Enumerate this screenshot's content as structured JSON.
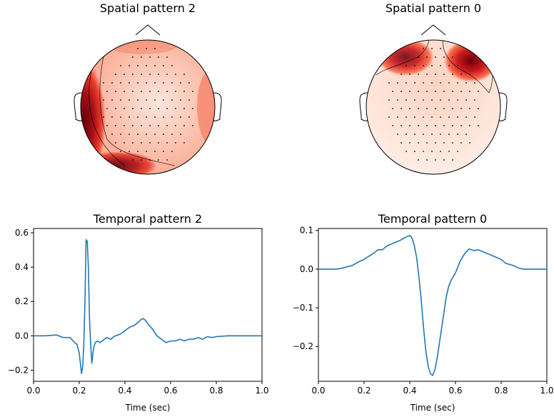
{
  "chart_data": [
    {
      "type": "topomap",
      "title": "Spatial pattern 2",
      "colormap": "Reds",
      "hotspots": [
        {
          "region": "left-temporal",
          "intensity": 1.0
        },
        {
          "region": "left-occipital",
          "intensity": 0.95
        },
        {
          "region": "right-temporal",
          "intensity": 0.35
        },
        {
          "region": "frontal",
          "intensity": 0.25
        }
      ]
    },
    {
      "type": "topomap",
      "title": "Spatial pattern 0",
      "colormap": "Reds",
      "hotspots": [
        {
          "region": "right-frontal",
          "intensity": 1.0
        },
        {
          "region": "left-frontal",
          "intensity": 0.9
        },
        {
          "region": "occipital",
          "intensity": 0.08
        }
      ]
    },
    {
      "type": "line",
      "title": "Temporal pattern 2",
      "xlabel": "Time (sec)",
      "ylabel": "",
      "xlim": [
        0.0,
        1.0
      ],
      "ylim": [
        -0.265,
        0.625
      ],
      "xticks": [
        "0.0",
        "0.2",
        "0.4",
        "0.6",
        "0.8",
        "1.0"
      ],
      "yticks": [
        "−0.2",
        "0.0",
        "0.2",
        "0.4",
        "0.6"
      ],
      "series": [
        {
          "color": "#1f77b4",
          "x": [
            0.0,
            0.05,
            0.1,
            0.13,
            0.16,
            0.18,
            0.19,
            0.2,
            0.21,
            0.215,
            0.22,
            0.225,
            0.23,
            0.235,
            0.24,
            0.245,
            0.25,
            0.255,
            0.26,
            0.265,
            0.27,
            0.28,
            0.29,
            0.3,
            0.32,
            0.34,
            0.35,
            0.36,
            0.38,
            0.4,
            0.42,
            0.44,
            0.46,
            0.47,
            0.48,
            0.49,
            0.5,
            0.52,
            0.54,
            0.56,
            0.58,
            0.6,
            0.62,
            0.64,
            0.66,
            0.68,
            0.7,
            0.72,
            0.74,
            0.76,
            0.78,
            0.8,
            0.85,
            0.9,
            0.95,
            1.0
          ],
          "values": [
            0.0,
            0.0,
            0.005,
            -0.01,
            -0.01,
            -0.04,
            -0.05,
            -0.1,
            -0.22,
            -0.18,
            -0.05,
            0.2,
            0.56,
            0.55,
            0.4,
            0.1,
            -0.05,
            -0.16,
            -0.1,
            -0.06,
            -0.04,
            -0.03,
            -0.04,
            -0.03,
            -0.01,
            -0.02,
            -0.005,
            0.0,
            0.01,
            0.03,
            0.05,
            0.06,
            0.08,
            0.095,
            0.1,
            0.09,
            0.07,
            0.04,
            0.0,
            -0.02,
            -0.04,
            -0.03,
            -0.03,
            -0.02,
            -0.03,
            -0.02,
            -0.02,
            -0.01,
            -0.02,
            -0.005,
            -0.01,
            -0.005,
            0.0,
            0.0,
            0.0,
            0.0
          ]
        }
      ]
    },
    {
      "type": "line",
      "title": "Temporal pattern 0",
      "xlabel": "Time (sec)",
      "ylabel": "",
      "xlim": [
        0.0,
        1.0
      ],
      "ylim": [
        -0.29,
        0.105
      ],
      "xticks": [
        "0.0",
        "0.2",
        "0.4",
        "0.6",
        "0.8",
        "1.0"
      ],
      "yticks": [
        "−0.2",
        "−0.1",
        "0.0",
        "0.1"
      ],
      "series": [
        {
          "color": "#1f77b4",
          "x": [
            0.0,
            0.05,
            0.08,
            0.1,
            0.12,
            0.15,
            0.18,
            0.2,
            0.22,
            0.24,
            0.26,
            0.28,
            0.3,
            0.32,
            0.34,
            0.36,
            0.38,
            0.4,
            0.41,
            0.42,
            0.43,
            0.44,
            0.45,
            0.46,
            0.47,
            0.48,
            0.49,
            0.5,
            0.51,
            0.52,
            0.53,
            0.54,
            0.55,
            0.56,
            0.57,
            0.58,
            0.6,
            0.62,
            0.64,
            0.66,
            0.68,
            0.7,
            0.72,
            0.74,
            0.76,
            0.78,
            0.8,
            0.82,
            0.85,
            0.88,
            0.9,
            0.95,
            1.0
          ],
          "values": [
            0.0,
            0.0,
            0.0,
            0.002,
            0.005,
            0.01,
            0.02,
            0.025,
            0.033,
            0.04,
            0.05,
            0.05,
            0.06,
            0.065,
            0.07,
            0.075,
            0.082,
            0.087,
            0.08,
            0.06,
            0.03,
            -0.02,
            -0.08,
            -0.15,
            -0.21,
            -0.25,
            -0.27,
            -0.275,
            -0.26,
            -0.23,
            -0.19,
            -0.15,
            -0.11,
            -0.07,
            -0.045,
            -0.03,
            -0.01,
            0.02,
            0.04,
            0.052,
            0.048,
            0.05,
            0.045,
            0.04,
            0.035,
            0.03,
            0.025,
            0.015,
            0.01,
            0.002,
            0.0,
            0.0,
            0.0
          ]
        }
      ]
    }
  ]
}
